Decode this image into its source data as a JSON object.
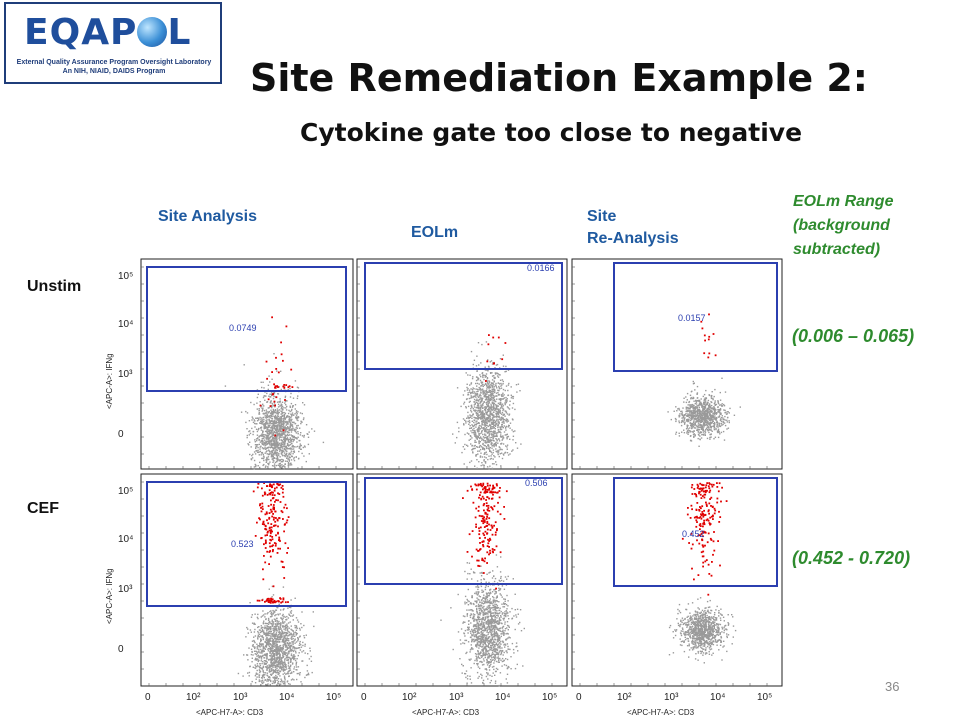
{
  "logo": {
    "word_left": "EQAP",
    "word_right": "L",
    "line1": "External Quality Assurance Program Oversight Laboratory",
    "line2": "An NIH, NIAID, DAIDS Program"
  },
  "title": "Site Remediation Example 2:",
  "subtitle": "Cytokine gate too close to negative",
  "columns": {
    "site_analysis": "Site Analysis",
    "eolm": "EOLm",
    "site_reanalysis_1": "Site",
    "site_reanalysis_2": "Re-Analysis"
  },
  "range_header": [
    "EOLm Range",
    "(background",
    "subtracted)"
  ],
  "rows": {
    "unstim": "Unstim",
    "cef": "CEF"
  },
  "ranges": {
    "unstim": "(0.006 – 0.065)",
    "cef": "(0.452 - 0.720)"
  },
  "axis": {
    "y_label": "<APC-A>: IFNg",
    "x_label": "<APC-H7-A>: CD3",
    "y_ticks": [
      "10⁵",
      "10⁴",
      "10³",
      "0"
    ],
    "x_ticks": [
      "0",
      "10²",
      "10³",
      "10⁴",
      "10⁵"
    ]
  },
  "panels": [
    {
      "row": "unstim",
      "col": "site_analysis",
      "value": "0.0749"
    },
    {
      "row": "unstim",
      "col": "eolm",
      "value": "0.0166"
    },
    {
      "row": "unstim",
      "col": "site_reanalysis",
      "value": "0.0157"
    },
    {
      "row": "cef",
      "col": "site_analysis",
      "value": "0.523"
    },
    {
      "row": "cef",
      "col": "eolm",
      "value": "0.506"
    },
    {
      "row": "cef",
      "col": "site_reanalysis",
      "value": "0.452"
    }
  ],
  "slide_number": "36",
  "colors": {
    "gate": "#2b3fb0",
    "events_positive": "#e00000",
    "events_negative": "#9a9a9a",
    "header_blue": "#1f5aa0",
    "range_green": "#2e8b2e"
  }
}
